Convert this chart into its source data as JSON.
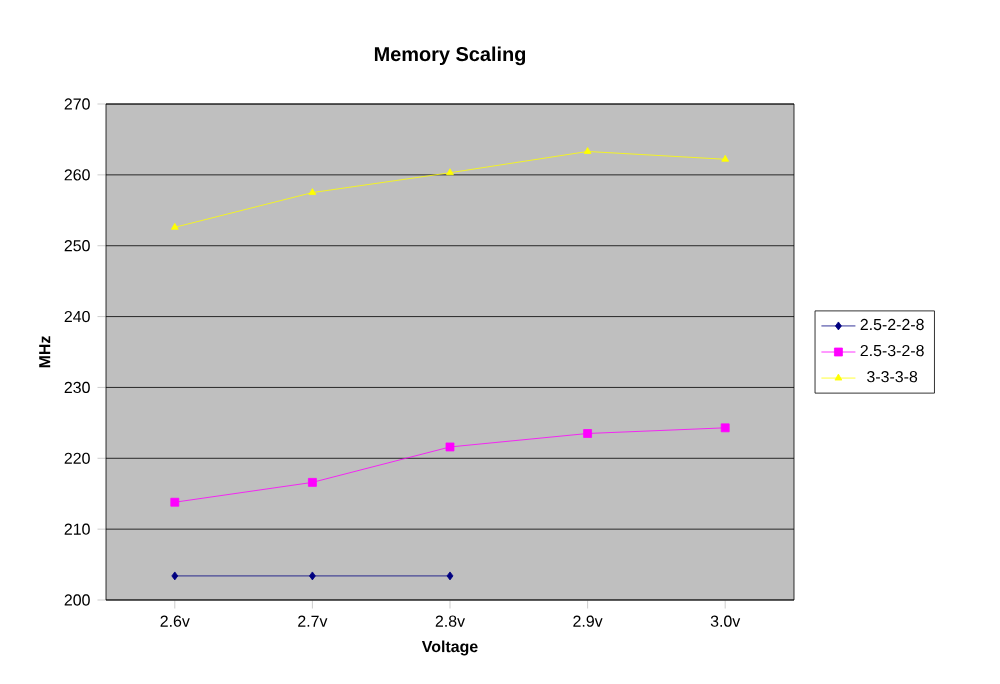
{
  "chart_data": {
    "type": "line",
    "title": "Memory Scaling",
    "xlabel": "Voltage",
    "ylabel": "MHz",
    "categories": [
      "2.6v",
      "2.7v",
      "2.8v",
      "2.9v",
      "3.0v"
    ],
    "series": [
      {
        "name": "2.5-2-2-8",
        "color": "#000080",
        "marker": "diamond",
        "values": [
          203.4,
          203.4,
          203.4,
          null,
          null
        ]
      },
      {
        "name": "2.5-3-2-8",
        "color": "#ff00ff",
        "marker": "square",
        "values": [
          213.8,
          216.6,
          221.6,
          223.5,
          224.3
        ]
      },
      {
        "name": "3-3-3-8",
        "color": "#ffff00",
        "marker": "triangle",
        "values": [
          252.6,
          257.5,
          260.3,
          263.3,
          262.2
        ]
      }
    ],
    "ylim": [
      200,
      270
    ],
    "yticks": [
      200,
      210,
      220,
      230,
      240,
      250,
      260,
      270
    ],
    "grid": "y",
    "legend": "right"
  }
}
